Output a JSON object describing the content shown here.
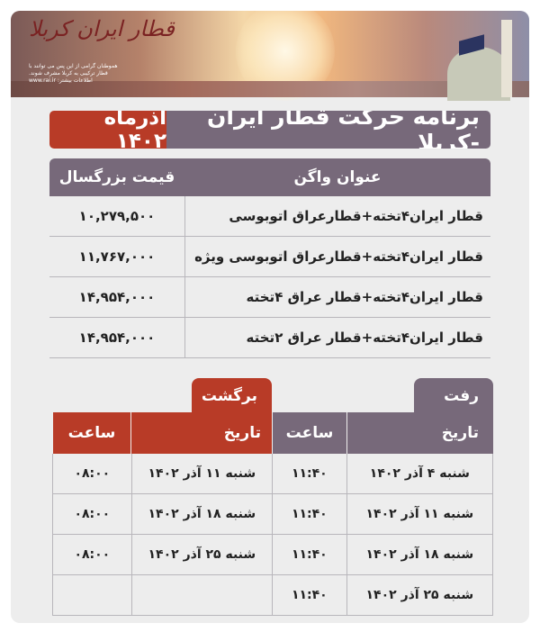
{
  "banner": {
    "logo_text": "قطار ایران کربلا",
    "tagline": "هموطنان گرامی از این پس می توانند با قطار ترکیبی به کربلا مشرف شوند.",
    "website": "اطلاعات بیشتر: www.rai.ir"
  },
  "title": {
    "main": "برنامه حرکت قطار ایران -کربلا",
    "month": "آذرماه ۱۴۰۲"
  },
  "colors": {
    "purple": "#77697a",
    "red": "#b83b27",
    "background": "#ededed"
  },
  "price_table": {
    "headers": {
      "name": "عنوان واگن",
      "price": "قیمت بزرگسال"
    },
    "rows": [
      {
        "name": "قطار ایران۴تخته+قطارعراق اتوبوسی",
        "price": "۱۰,۲۷۹,۵۰۰"
      },
      {
        "name": "قطار ایران۴تخته+قطارعراق اتوبوسی ویژه",
        "price": "۱۱,۷۶۷,۰۰۰"
      },
      {
        "name": "قطار ایران۴تخته+قطار عراق ۴تخته",
        "price": "۱۴,۹۵۴,۰۰۰"
      },
      {
        "name": "قطار ایران۴تخته+قطار عراق ۲تخته",
        "price": "۱۴,۹۵۴,۰۰۰"
      }
    ]
  },
  "schedule": {
    "departure_label": "رفت",
    "return_label": "برگشت",
    "headers": {
      "date": "تاریخ",
      "time": "ساعت",
      "return_date": "تاریخ",
      "return_time": "ساعت"
    },
    "rows": [
      {
        "date": "شنبه ۴ آذر ۱۴۰۲",
        "time": "۱۱:۴۰",
        "return_date": "شنبه ۱۱ آذر ۱۴۰۲",
        "return_time": "۰۸:۰۰"
      },
      {
        "date": "شنبه ۱۱ آذر ۱۴۰۲",
        "time": "۱۱:۴۰",
        "return_date": "شنبه ۱۸ آذر ۱۴۰۲",
        "return_time": "۰۸:۰۰"
      },
      {
        "date": "شنبه ۱۸ آذر ۱۴۰۲",
        "time": "۱۱:۴۰",
        "return_date": "شنبه ۲۵ آذر ۱۴۰۲",
        "return_time": "۰۸:۰۰"
      },
      {
        "date": "شنبه ۲۵ آذر ۱۴۰۲",
        "time": "۱۱:۴۰",
        "return_date": "",
        "return_time": ""
      }
    ]
  }
}
